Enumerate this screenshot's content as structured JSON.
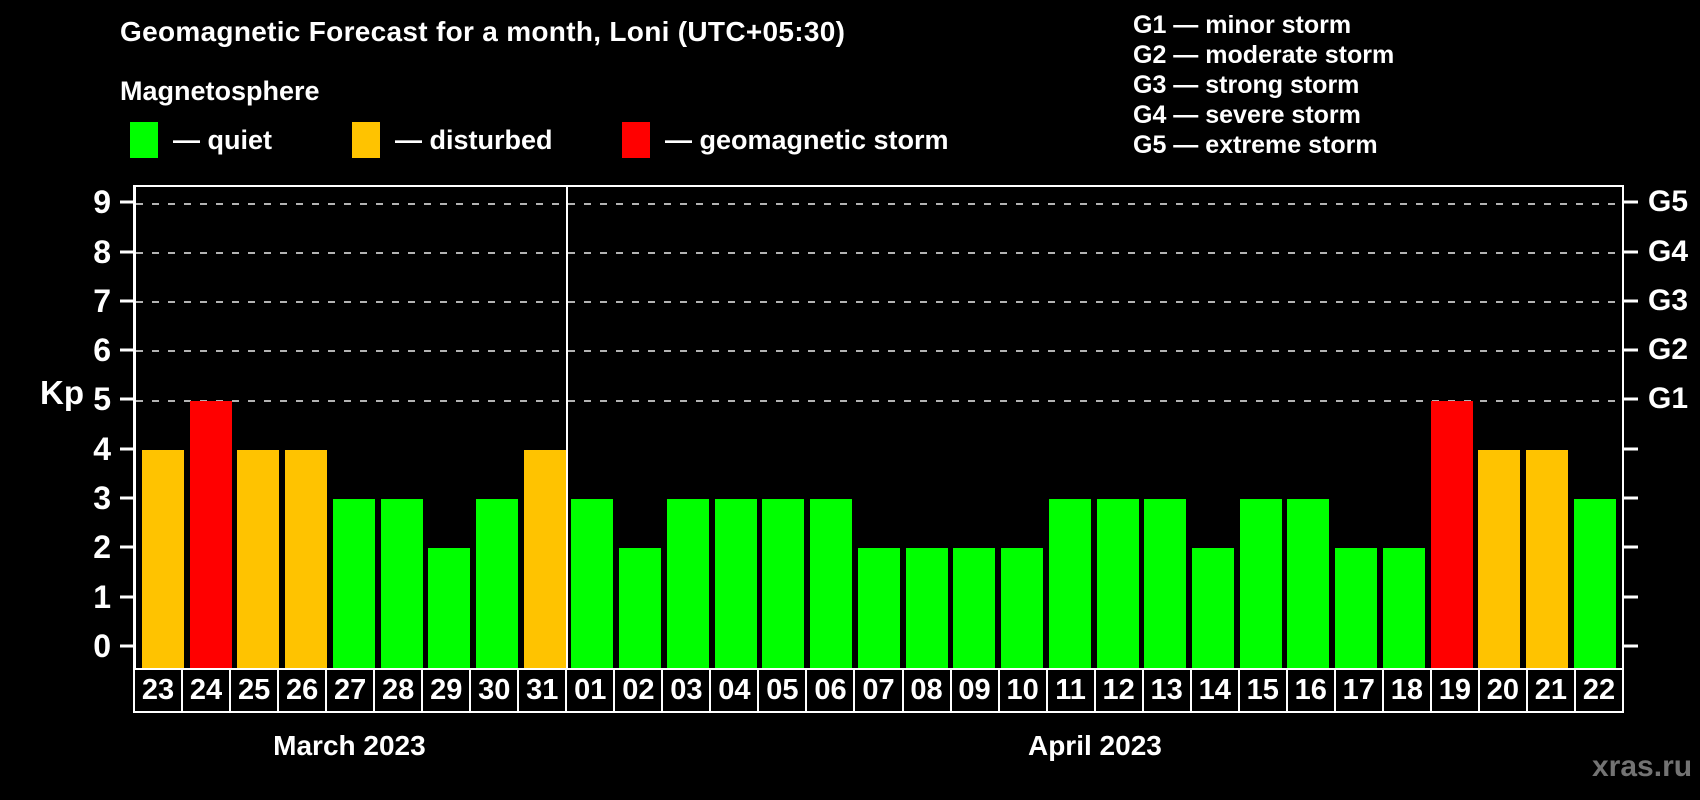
{
  "chart_data": {
    "type": "bar",
    "title": "Geomagnetic Forecast for a month, Loni (UTC+05:30)",
    "subtitle": "Magnetosphere",
    "ylabel": "Kp",
    "ylim": [
      -0.45,
      9.35
    ],
    "yticks": [
      0,
      1,
      2,
      3,
      4,
      5,
      6,
      7,
      8,
      9
    ],
    "gridlines_at": [
      5,
      6,
      7,
      8,
      9
    ],
    "grid": "dashed horizontal lines at storm levels G1-G5 only",
    "legend_position": "top",
    "right_axis": [
      {
        "level": 5,
        "label": "G1"
      },
      {
        "level": 6,
        "label": "G2"
      },
      {
        "level": 7,
        "label": "G3"
      },
      {
        "level": 8,
        "label": "G4"
      },
      {
        "level": 9,
        "label": "G5"
      }
    ],
    "months": [
      {
        "label": "March 2023",
        "days": 9
      },
      {
        "label": "April 2023",
        "days": 22
      }
    ],
    "categories": [
      "23",
      "24",
      "25",
      "26",
      "27",
      "28",
      "29",
      "30",
      "31",
      "01",
      "02",
      "03",
      "04",
      "05",
      "06",
      "07",
      "08",
      "09",
      "10",
      "11",
      "12",
      "13",
      "14",
      "15",
      "16",
      "17",
      "18",
      "19",
      "20",
      "21",
      "22"
    ],
    "values": [
      4,
      5,
      4,
      4,
      3,
      3,
      2,
      3,
      4,
      3,
      2,
      3,
      3,
      3,
      3,
      2,
      2,
      2,
      2,
      3,
      3,
      3,
      2,
      3,
      3,
      2,
      2,
      5,
      4,
      4,
      3
    ],
    "status": [
      "disturbed",
      "storm",
      "disturbed",
      "disturbed",
      "quiet",
      "quiet",
      "quiet",
      "quiet",
      "disturbed",
      "quiet",
      "quiet",
      "quiet",
      "quiet",
      "quiet",
      "quiet",
      "quiet",
      "quiet",
      "quiet",
      "quiet",
      "quiet",
      "quiet",
      "quiet",
      "quiet",
      "quiet",
      "quiet",
      "quiet",
      "quiet",
      "storm",
      "disturbed",
      "disturbed",
      "quiet"
    ],
    "colors": {
      "quiet": "#00ff00",
      "disturbed": "#ffc300",
      "storm": "#ff0000"
    }
  },
  "legend": {
    "quiet": {
      "label": "— quiet",
      "color": "#00ff00"
    },
    "disturbed": {
      "label": "— disturbed",
      "color": "#ffc300"
    },
    "storm": {
      "label": "— geomagnetic storm",
      "color": "#ff0000"
    }
  },
  "g_scale": [
    "G1 — minor storm",
    "G2 — moderate storm",
    "G3 — strong storm",
    "G4 — severe storm",
    "G5 — extreme storm"
  ],
  "watermark": "xras.ru"
}
